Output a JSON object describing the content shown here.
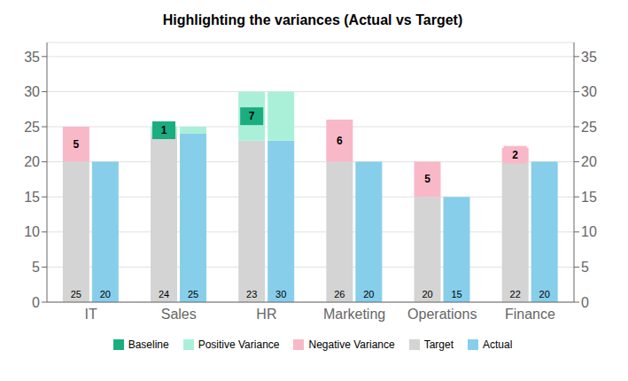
{
  "chart_data": {
    "type": "bar",
    "title": "Highlighting the variances (Actual vs Target)",
    "categories": [
      "IT",
      "Sales",
      "HR",
      "Marketing",
      "Operations",
      "Finance"
    ],
    "series": [
      {
        "name": "Baseline",
        "color": "#1aad80",
        "values": [
          null,
          null,
          null,
          null,
          null,
          null
        ]
      },
      {
        "name": "Positive Variance",
        "color": "#aaf0d8",
        "values": [
          null,
          1,
          7,
          null,
          null,
          null
        ]
      },
      {
        "name": "Negative Variance",
        "color": "#f8b8c8",
        "values": [
          5,
          null,
          null,
          6,
          5,
          2
        ]
      },
      {
        "name": "Target",
        "color": "#d4d4d4",
        "values": [
          25,
          24,
          23,
          26,
          20,
          22
        ]
      },
      {
        "name": "Actual",
        "color": "#87CEEB",
        "values": [
          20,
          25,
          30,
          20,
          15,
          20
        ]
      }
    ],
    "ylim": [
      0,
      37
    ],
    "yticks": [
      0,
      5,
      10,
      15,
      20,
      25,
      30,
      35
    ],
    "y2lim": [
      0,
      37
    ],
    "y2ticks": [
      0,
      5,
      10,
      15,
      20,
      25,
      30,
      35
    ],
    "grid": true,
    "data_labels": true
  }
}
